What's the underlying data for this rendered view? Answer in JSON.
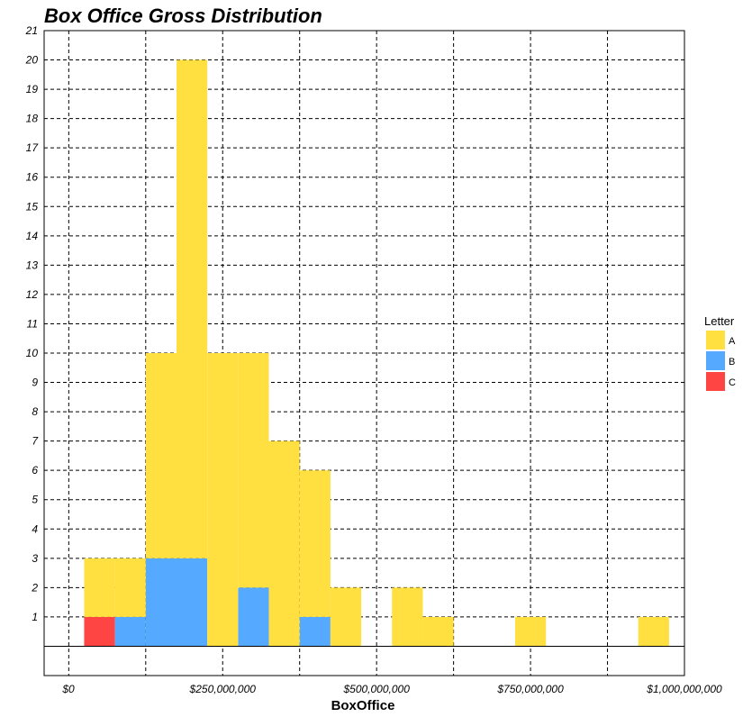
{
  "chart_data": {
    "type": "bar",
    "stacked": true,
    "title": "Box Office Gross Distribution",
    "xlabel": "BoxOffice",
    "ylabel": "",
    "bin_width": 50000000,
    "bin_starts": [
      25000000,
      75000000,
      125000000,
      175000000,
      225000000,
      275000000,
      325000000,
      375000000,
      425000000,
      475000000,
      525000000,
      575000000,
      625000000,
      675000000,
      725000000,
      775000000,
      825000000,
      875000000,
      925000000
    ],
    "series": [
      {
        "name": "C",
        "color": "#ff4444",
        "values": [
          1,
          0,
          0,
          0,
          0,
          0,
          0,
          0,
          0,
          0,
          0,
          0,
          0,
          0,
          0,
          0,
          0,
          0,
          0
        ]
      },
      {
        "name": "B",
        "color": "#55aaff",
        "values": [
          0,
          1,
          3,
          3,
          0,
          2,
          0,
          1,
          0,
          0,
          0,
          0,
          0,
          0,
          0,
          0,
          0,
          0,
          0
        ]
      },
      {
        "name": "A",
        "color": "#ffe040",
        "values": [
          2,
          2,
          7,
          17,
          10,
          8,
          7,
          5,
          2,
          0,
          2,
          1,
          0,
          0,
          1,
          0,
          0,
          0,
          1
        ]
      }
    ],
    "xlim": [
      -40000000,
      1000000000
    ],
    "ylim": [
      -1,
      21
    ],
    "x_ticks": [
      0,
      250000000,
      500000000,
      750000000,
      1000000000
    ],
    "x_tick_labels": [
      "$0",
      "$250,000,000",
      "$500,000,000",
      "$750,000,000",
      "$1,000,000,000"
    ],
    "x_grid": [
      0,
      125000000,
      250000000,
      375000000,
      500000000,
      625000000,
      750000000,
      875000000,
      1000000000
    ],
    "y_ticks": [
      1,
      2,
      3,
      4,
      5,
      6,
      7,
      8,
      9,
      10,
      11,
      12,
      13,
      14,
      15,
      16,
      17,
      18,
      19,
      20,
      21
    ],
    "y_tick_labels": [
      "1",
      "2",
      "3",
      "4",
      "5",
      "6",
      "7",
      "8",
      "9",
      "10",
      "11",
      "12",
      "13",
      "14",
      "15",
      "16",
      "17",
      "18",
      "19",
      "20",
      "21"
    ],
    "grid": true,
    "legend": {
      "title": "Letter",
      "position": "right",
      "entries": [
        {
          "label": "A",
          "color": "#ffe040"
        },
        {
          "label": "B",
          "color": "#55aaff"
        },
        {
          "label": "C",
          "color": "#ff4444"
        }
      ]
    }
  }
}
